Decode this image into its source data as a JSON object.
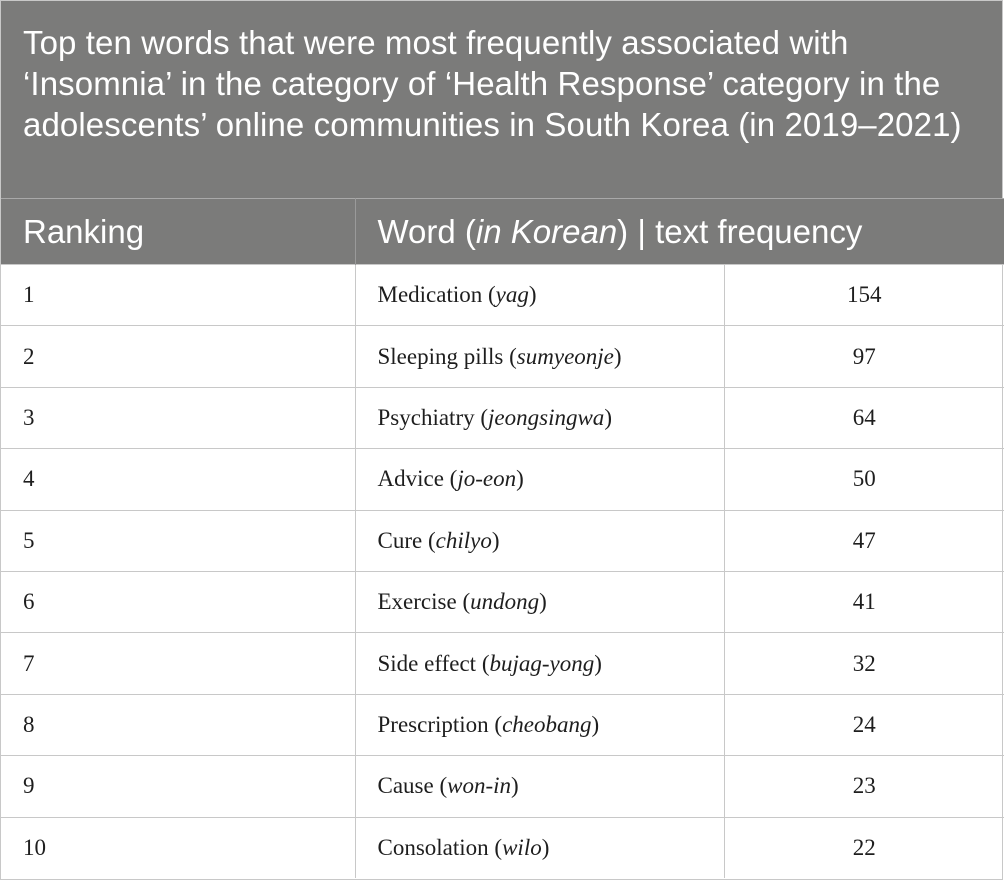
{
  "caption": "Top ten words that were most frequently associated with ‘Insomnia’ in the category of ‘Health Response’ category in the adolescents’ online communities in South Korea (in 2019–2021)",
  "headers": {
    "ranking": "Ranking",
    "word_prefix": "Word (",
    "word_italic": "in Korean",
    "word_suffix": ") | text frequency"
  },
  "rows": [
    {
      "rank": "1",
      "word": "Medication",
      "korean": "yag",
      "freq": "154"
    },
    {
      "rank": "2",
      "word": "Sleeping pills",
      "korean": "sumyeonje",
      "freq": "97"
    },
    {
      "rank": "3",
      "word": "Psychiatry",
      "korean": "jeongsingwa",
      "freq": "64"
    },
    {
      "rank": "4",
      "word": "Advice",
      "korean": "jo-eon",
      "freq": "50"
    },
    {
      "rank": "5",
      "word": "Cure",
      "korean": "chilyo",
      "freq": "47"
    },
    {
      "rank": "6",
      "word": "Exercise",
      "korean": "undong",
      "freq": "41"
    },
    {
      "rank": "7",
      "word": "Side effect",
      "korean": "bujag-yong",
      "freq": "32"
    },
    {
      "rank": "8",
      "word": "Prescription",
      "korean": "cheobang",
      "freq": "24"
    },
    {
      "rank": "9",
      "word": "Cause",
      "korean": "won-in",
      "freq": "23"
    },
    {
      "rank": "10",
      "word": "Consolation",
      "korean": "wilo",
      "freq": "22"
    }
  ],
  "colors": {
    "header_bg": "#7b7b7a",
    "header_text": "#ffffff",
    "border": "#c8c8c8"
  }
}
